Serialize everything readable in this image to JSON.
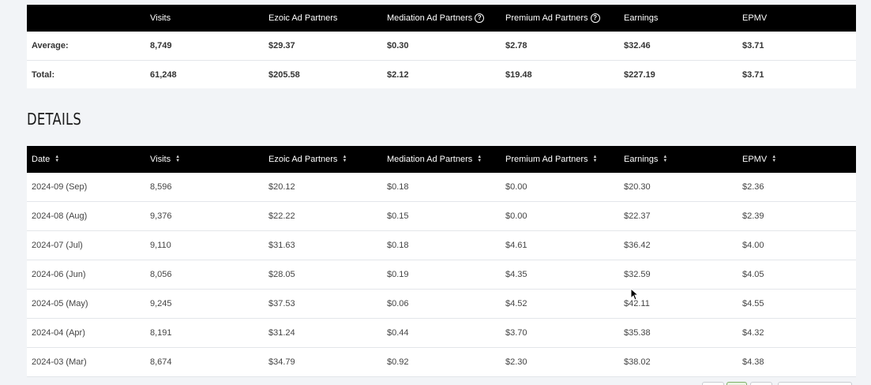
{
  "summary": {
    "headers": [
      "",
      "Visits",
      "Ezoic Ad Partners",
      "Mediation Ad Partners",
      "Premium Ad Partners",
      "Earnings",
      "EPMV"
    ],
    "rows": [
      {
        "label": "Average:",
        "visits": "8,749",
        "ezoic": "$29.37",
        "mediation": "$0.30",
        "premium": "$2.78",
        "earnings": "$32.46",
        "epmv": "$3.71"
      },
      {
        "label": "Total:",
        "visits": "61,248",
        "ezoic": "$205.58",
        "mediation": "$2.12",
        "premium": "$19.48",
        "earnings": "$227.19",
        "epmv": "$3.71"
      }
    ]
  },
  "details": {
    "title": "DETAILS",
    "headers": [
      "Date",
      "Visits",
      "Ezoic Ad Partners",
      "Mediation Ad Partners",
      "Premium Ad Partners",
      "Earnings",
      "EPMV"
    ],
    "rows": [
      {
        "date": "2024-09 (Sep)",
        "visits": "8,596",
        "ezoic": "$20.12",
        "mediation": "$0.18",
        "premium": "$0.00",
        "earnings": "$20.30",
        "epmv": "$2.36"
      },
      {
        "date": "2024-08 (Aug)",
        "visits": "9,376",
        "ezoic": "$22.22",
        "mediation": "$0.15",
        "premium": "$0.00",
        "earnings": "$22.37",
        "epmv": "$2.39"
      },
      {
        "date": "2024-07 (Jul)",
        "visits": "9,110",
        "ezoic": "$31.63",
        "mediation": "$0.18",
        "premium": "$4.61",
        "earnings": "$36.42",
        "epmv": "$4.00"
      },
      {
        "date": "2024-06 (Jun)",
        "visits": "8,056",
        "ezoic": "$28.05",
        "mediation": "$0.19",
        "premium": "$4.35",
        "earnings": "$32.59",
        "epmv": "$4.05"
      },
      {
        "date": "2024-05 (May)",
        "visits": "9,245",
        "ezoic": "$37.53",
        "mediation": "$0.06",
        "premium": "$4.52",
        "earnings": "$42.11",
        "epmv": "$4.55"
      },
      {
        "date": "2024-04 (Apr)",
        "visits": "8,191",
        "ezoic": "$31.24",
        "mediation": "$0.44",
        "premium": "$3.70",
        "earnings": "$35.38",
        "epmv": "$4.32"
      },
      {
        "date": "2024-03 (Mar)",
        "visits": "8,674",
        "ezoic": "$34.79",
        "mediation": "$0.92",
        "premium": "$2.30",
        "earnings": "$38.02",
        "epmv": "$4.38"
      }
    ]
  },
  "icons": {
    "help": "help-circle-icon",
    "sort": "sort-arrows-icon",
    "cursor": "mouse-pointer-icon"
  },
  "colors": {
    "header_bg": "#000000",
    "header_text": "#ffffff",
    "page_bg": "#f2f4f7",
    "row_border": "#e3e6ea"
  }
}
